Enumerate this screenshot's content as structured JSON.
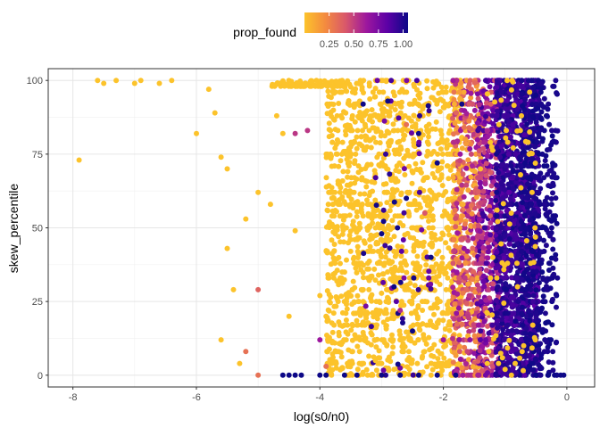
{
  "chart_data": {
    "type": "scatter",
    "title": "",
    "xlabel": "log(s0/n0)",
    "ylabel": "skew_percentile",
    "xlim": [
      -8.4,
      0.45
    ],
    "ylim": [
      -4,
      104
    ],
    "x_ticks": [
      {
        "value": -8,
        "label": "-8"
      },
      {
        "value": -6,
        "label": "-6"
      },
      {
        "value": -4,
        "label": "-4"
      },
      {
        "value": -2,
        "label": "-2"
      },
      {
        "value": 0,
        "label": "0"
      }
    ],
    "y_ticks": [
      {
        "value": 0,
        "label": "0"
      },
      {
        "value": 25,
        "label": "25"
      },
      {
        "value": 50,
        "label": "50"
      },
      {
        "value": 75,
        "label": "75"
      },
      {
        "value": 100,
        "label": "100"
      }
    ],
    "grid": true,
    "legend": {
      "title": "prop_found",
      "placement": "top",
      "range": [
        0,
        1.05
      ],
      "ticks": [
        {
          "value": 0.25,
          "label": "0.25"
        },
        {
          "value": 0.5,
          "label": "0.50"
        },
        {
          "value": 0.75,
          "label": "0.75"
        },
        {
          "value": 1.0,
          "label": "1.00"
        }
      ],
      "colors": [
        "#fcc32b",
        "#f48b3f",
        "#d8576b",
        "#9c179e",
        "#5c01a6",
        "#0d0887"
      ]
    },
    "points": [
      {
        "x": -7.9,
        "y": 73,
        "c": 0.0
      },
      {
        "x": -7.6,
        "y": 100,
        "c": 0.0
      },
      {
        "x": -7.5,
        "y": 99,
        "c": 0.0
      },
      {
        "x": -7.3,
        "y": 100,
        "c": 0.0
      },
      {
        "x": -7.0,
        "y": 99,
        "c": 0.0
      },
      {
        "x": -6.9,
        "y": 100,
        "c": 0.0
      },
      {
        "x": -6.6,
        "y": 99,
        "c": 0.0
      },
      {
        "x": -6.4,
        "y": 100,
        "c": 0.0
      },
      {
        "x": -6.0,
        "y": 82,
        "c": 0.0
      },
      {
        "x": -5.8,
        "y": 97,
        "c": 0.0
      },
      {
        "x": -5.7,
        "y": 89,
        "c": 0.0
      },
      {
        "x": -5.6,
        "y": 74,
        "c": 0.0
      },
      {
        "x": -5.5,
        "y": 70,
        "c": 0.0
      },
      {
        "x": -5.6,
        "y": 12,
        "c": 0.0
      },
      {
        "x": -5.5,
        "y": 43,
        "c": 0.0
      },
      {
        "x": -5.4,
        "y": 29,
        "c": 0.0
      },
      {
        "x": -5.3,
        "y": 4,
        "c": 0.0
      },
      {
        "x": -5.2,
        "y": 53,
        "c": 0.0
      },
      {
        "x": -5.0,
        "y": 29,
        "c": 0.35
      },
      {
        "x": -5.0,
        "y": 0,
        "c": 0.3
      },
      {
        "x": -5.2,
        "y": 8,
        "c": 0.3
      },
      {
        "x": -5.0,
        "y": 62,
        "c": 0.0
      },
      {
        "x": -4.8,
        "y": 58,
        "c": 0.0
      },
      {
        "x": -4.7,
        "y": 88,
        "c": 0.0
      },
      {
        "x": -4.6,
        "y": 82,
        "c": 0.0
      },
      {
        "x": -4.5,
        "y": 20,
        "c": 0.0
      },
      {
        "x": -4.4,
        "y": 82,
        "c": 0.5
      },
      {
        "x": -4.4,
        "y": 49,
        "c": 0.0
      },
      {
        "x": -4.2,
        "y": 83,
        "c": 0.5
      },
      {
        "x": -4.0,
        "y": 27,
        "c": 0.0
      },
      {
        "x": -3.9,
        "y": 20,
        "c": 0.0
      },
      {
        "x": -3.8,
        "y": 11,
        "c": 0.0
      },
      {
        "x": -3.6,
        "y": 35,
        "c": 0.0
      },
      {
        "x": -3.5,
        "y": 27,
        "c": 0.0
      },
      {
        "x": -3.3,
        "y": 18,
        "c": 0.0
      },
      {
        "x": -3.1,
        "y": 5,
        "c": 0.0
      },
      {
        "x": -2.8,
        "y": 2,
        "c": 0.0
      },
      {
        "x": -4.0,
        "y": 12,
        "c": 0.6
      },
      {
        "x": -3.9,
        "y": 3,
        "c": 0.3
      },
      {
        "x": -4.6,
        "y": 0,
        "c": 1.0
      },
      {
        "x": -4.5,
        "y": 0,
        "c": 1.0
      },
      {
        "x": -4.4,
        "y": 0,
        "c": 1.0
      },
      {
        "x": -4.3,
        "y": 0,
        "c": 1.0
      },
      {
        "x": -4.0,
        "y": 0,
        "c": 1.0
      },
      {
        "x": -3.9,
        "y": 0,
        "c": 1.0
      },
      {
        "x": -3.6,
        "y": 0,
        "c": 1.0
      },
      {
        "x": -3.4,
        "y": 0,
        "c": 1.0
      },
      {
        "x": -3.0,
        "y": 0,
        "c": 1.0
      },
      {
        "x": -2.7,
        "y": 0,
        "c": 1.0
      },
      {
        "x": -2.4,
        "y": 0,
        "c": 1.0
      },
      {
        "x": -2.1,
        "y": 0,
        "c": 1.0
      },
      {
        "x": -1.8,
        "y": 0,
        "c": 1.0
      },
      {
        "x": -0.5,
        "y": 0,
        "c": 1.0
      },
      {
        "x": -0.3,
        "y": 0,
        "c": 1.0
      },
      {
        "x": -0.2,
        "y": 0,
        "c": 1.0
      },
      {
        "x": -0.1,
        "y": 0,
        "c": 1.0
      },
      {
        "x": -0.05,
        "y": 0,
        "c": 1.0
      },
      {
        "x": -0.3,
        "y": 18,
        "c": 1.0
      },
      {
        "x": -0.35,
        "y": 50,
        "c": 1.0
      },
      {
        "x": -0.45,
        "y": 75,
        "c": 1.0
      },
      {
        "x": -0.5,
        "y": 95,
        "c": 1.0
      },
      {
        "x": -0.4,
        "y": 35,
        "c": 1.0
      },
      {
        "x": -1.0,
        "y": 2,
        "c": 0.0
      },
      {
        "x": -1.2,
        "y": 40,
        "c": 0.0
      },
      {
        "x": -0.9,
        "y": 55,
        "c": 0.0
      },
      {
        "x": -0.7,
        "y": 10,
        "c": 0.0
      },
      {
        "x": -1.4,
        "y": 70,
        "c": 0.0
      },
      {
        "x": -1.1,
        "y": 85,
        "c": 0.0
      },
      {
        "x": -0.8,
        "y": 30,
        "c": 0.0
      },
      {
        "x": -2.4,
        "y": 82,
        "c": 1.0
      },
      {
        "x": -2.6,
        "y": 60,
        "c": 1.0
      },
      {
        "x": -2.2,
        "y": 40,
        "c": 1.0
      },
      {
        "x": -2.8,
        "y": 30,
        "c": 1.0
      },
      {
        "x": -3.0,
        "y": 48,
        "c": 1.0
      },
      {
        "x": -2.5,
        "y": 15,
        "c": 1.0
      },
      {
        "x": -2.9,
        "y": 93,
        "c": 1.0
      },
      {
        "x": -2.1,
        "y": 72,
        "c": 1.0
      },
      {
        "x": -3.3,
        "y": 92,
        "c": 1.0
      },
      {
        "x": -2.7,
        "y": 22,
        "c": 0.55
      },
      {
        "x": -2.3,
        "y": 55,
        "c": 0.4
      },
      {
        "x": -2.0,
        "y": 12,
        "c": 0.6
      },
      {
        "x": -2.6,
        "y": 85,
        "c": 0.3
      },
      {
        "x": -1.7,
        "y": 92,
        "c": 1.0
      },
      {
        "x": -1.6,
        "y": 20,
        "c": 0.5
      }
    ],
    "bands": [
      {
        "xmin": -4.8,
        "xmax": -3.5,
        "ymin": 98,
        "ymax": 100,
        "cmin": 0.0,
        "cmax": 0.0,
        "n": 90
      },
      {
        "xmin": -3.9,
        "xmax": -1.7,
        "ymin": 0,
        "ymax": 100,
        "cmin": 0.0,
        "cmax": 0.0,
        "n": 1600
      },
      {
        "xmin": -3.3,
        "xmax": -2.2,
        "ymin": 0,
        "ymax": 100,
        "cmin": 0.7,
        "cmax": 1.0,
        "n": 55
      },
      {
        "xmin": -1.85,
        "xmax": -1.35,
        "ymin": 0,
        "ymax": 100,
        "cmin": 0.05,
        "cmax": 0.65,
        "n": 650
      },
      {
        "xmin": -1.45,
        "xmax": -1.05,
        "ymin": 0,
        "ymax": 100,
        "cmin": 0.35,
        "cmax": 0.9,
        "n": 600
      },
      {
        "xmin": -1.15,
        "xmax": -0.45,
        "ymin": 0,
        "ymax": 100,
        "cmin": 0.8,
        "cmax": 1.0,
        "n": 1400
      },
      {
        "xmin": -0.75,
        "xmax": -0.15,
        "ymin": 0,
        "ymax": 100,
        "cmin": 0.95,
        "cmax": 1.0,
        "n": 380
      },
      {
        "xmin": -1.3,
        "xmax": -0.5,
        "ymin": 0,
        "ymax": 100,
        "cmin": 0.0,
        "cmax": 0.0,
        "n": 70
      }
    ]
  }
}
